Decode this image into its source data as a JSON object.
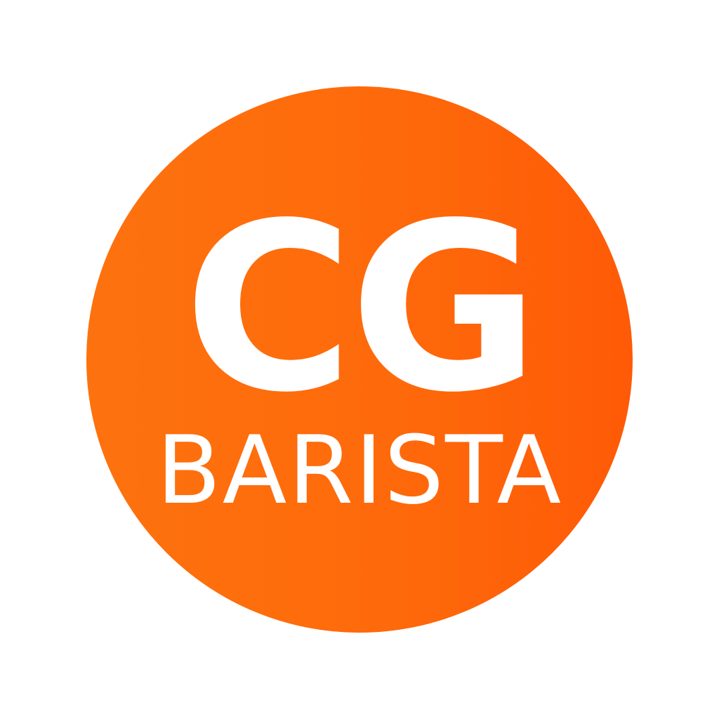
{
  "logo": {
    "monogram": "CG",
    "wordmark": "BARISTA",
    "colors": {
      "background": "#ffffff",
      "badge_gradient_start": "#fd720f",
      "badge_gradient_end": "#ff5a07",
      "text": "#ffffff"
    }
  }
}
